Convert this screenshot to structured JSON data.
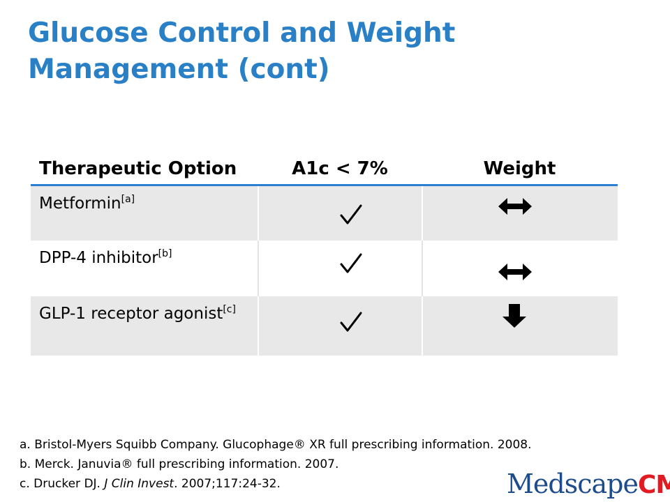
{
  "slide": {
    "title": "Glucose Control and Weight Management (cont)"
  },
  "table": {
    "headers": [
      "Therapeutic Option",
      "A1c < 7%",
      "Weight"
    ],
    "rows": [
      {
        "option": "Metformin",
        "ref": "[a]",
        "a1c": "check-icon",
        "weight": "double-arrow-horizontal-icon"
      },
      {
        "option": "DPP-4 inhibitor",
        "ref": "[b]",
        "a1c": "check-icon",
        "weight": "double-arrow-horizontal-icon"
      },
      {
        "option": "GLP-1 receptor agonist",
        "ref": "[c]",
        "a1c": "check-icon",
        "weight": "down-arrow-icon"
      }
    ]
  },
  "references": {
    "a": "a. Bristol-Myers Squibb Company. Glucophage® XR full prescribing information. 2008.",
    "b": "b. Merck. Januvia® full prescribing information. 2007.",
    "c_prefix": "c. Drucker DJ. ",
    "c_journal": "J Clin Invest",
    "c_suffix": ". 2007;117:24-32."
  },
  "logo": {
    "part1": "Medscape",
    "part2": "CME",
    "mark": "®"
  },
  "colors": {
    "title": "#2a80c6",
    "header_rule": "#2a7fd0",
    "row_band": "#e8e8e8",
    "logo_blue": "#1d4c8c",
    "logo_red": "#e21a22"
  }
}
